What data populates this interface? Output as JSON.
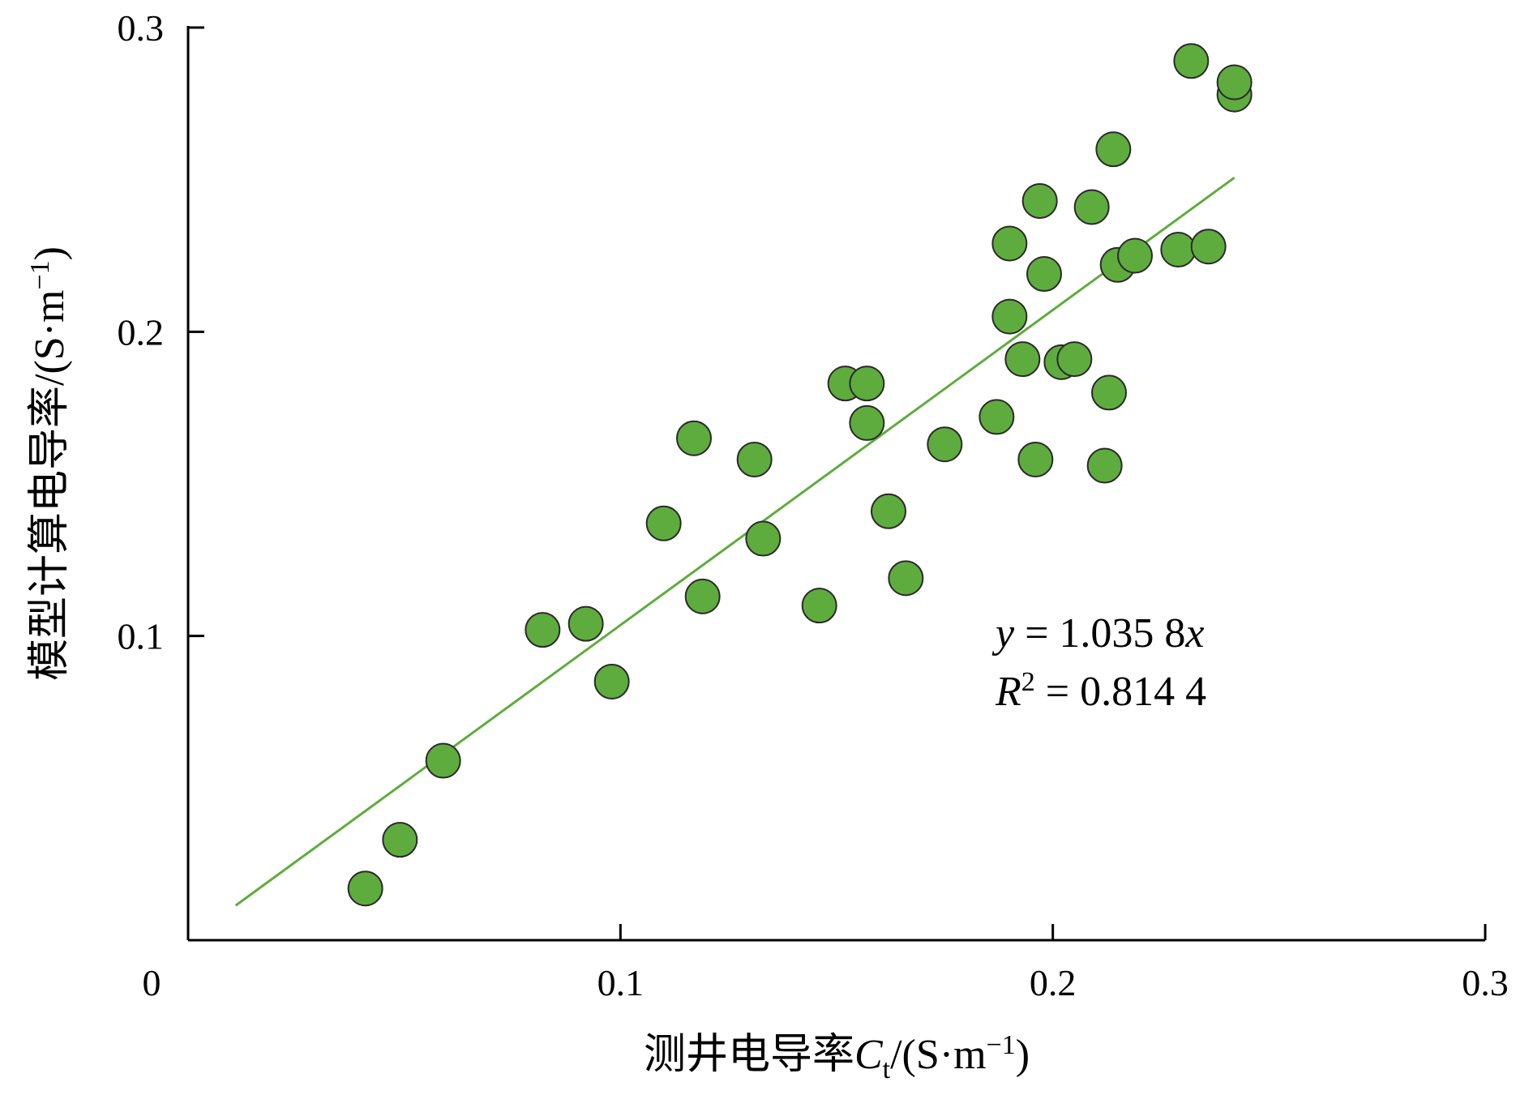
{
  "chart_data": {
    "type": "scatter",
    "title": "",
    "xlabel": "测井电导率C_t/(S·m^-1)",
    "ylabel": "模型计算电导率/(S·m^-1)",
    "xlabel_parts": {
      "prefix": "测井电导率",
      "var": "C",
      "sub": "t",
      "unit_open": "/(S·m",
      "unit_sup": "−1",
      "unit_close": ")"
    },
    "ylabel_parts": {
      "prefix": "模型计算电导率/(S·m",
      "unit_sup": "−1",
      "unit_close": ")"
    },
    "xlim": [
      0,
      0.3
    ],
    "ylim": [
      0,
      0.3
    ],
    "x_ticks": [
      0,
      0.1,
      0.2,
      0.3
    ],
    "x_tick_labels": [
      "0",
      "0.1",
      "0.2",
      "0.3"
    ],
    "y_ticks": [
      0.1,
      0.2,
      0.3
    ],
    "y_tick_labels": [
      "0.1",
      "0.2",
      "0.3"
    ],
    "grid": false,
    "marker_color": "#5fac3e",
    "marker_edge": "#2a2a2a",
    "fit_color": "#5fac3e",
    "points": [
      {
        "x": 0.041,
        "y": 0.017
      },
      {
        "x": 0.049,
        "y": 0.033
      },
      {
        "x": 0.059,
        "y": 0.059
      },
      {
        "x": 0.082,
        "y": 0.102
      },
      {
        "x": 0.092,
        "y": 0.104
      },
      {
        "x": 0.098,
        "y": 0.085
      },
      {
        "x": 0.11,
        "y": 0.137
      },
      {
        "x": 0.117,
        "y": 0.165
      },
      {
        "x": 0.119,
        "y": 0.113
      },
      {
        "x": 0.131,
        "y": 0.158
      },
      {
        "x": 0.133,
        "y": 0.132
      },
      {
        "x": 0.146,
        "y": 0.11
      },
      {
        "x": 0.152,
        "y": 0.183
      },
      {
        "x": 0.157,
        "y": 0.183
      },
      {
        "x": 0.157,
        "y": 0.17
      },
      {
        "x": 0.162,
        "y": 0.141
      },
      {
        "x": 0.166,
        "y": 0.119
      },
      {
        "x": 0.175,
        "y": 0.163
      },
      {
        "x": 0.187,
        "y": 0.172
      },
      {
        "x": 0.19,
        "y": 0.205
      },
      {
        "x": 0.19,
        "y": 0.229
      },
      {
        "x": 0.193,
        "y": 0.191
      },
      {
        "x": 0.196,
        "y": 0.158
      },
      {
        "x": 0.197,
        "y": 0.243
      },
      {
        "x": 0.198,
        "y": 0.219
      },
      {
        "x": 0.202,
        "y": 0.19
      },
      {
        "x": 0.205,
        "y": 0.191
      },
      {
        "x": 0.209,
        "y": 0.241
      },
      {
        "x": 0.212,
        "y": 0.156
      },
      {
        "x": 0.213,
        "y": 0.18
      },
      {
        "x": 0.214,
        "y": 0.26
      },
      {
        "x": 0.215,
        "y": 0.222
      },
      {
        "x": 0.219,
        "y": 0.225
      },
      {
        "x": 0.229,
        "y": 0.227
      },
      {
        "x": 0.232,
        "y": 0.289
      },
      {
        "x": 0.236,
        "y": 0.228
      },
      {
        "x": 0.242,
        "y": 0.278
      },
      {
        "x": 0.242,
        "y": 0.282
      }
    ],
    "fit": {
      "slope": 1.0358,
      "intercept": 0,
      "x_range": [
        0.011,
        0.242
      ]
    },
    "annotations": {
      "equation": {
        "var_y": "y",
        "eq": " = 1.035 8",
        "var_x": "x"
      },
      "r2": {
        "var_r": "R",
        "sup": "2",
        "eq": " = 0.814 4"
      }
    }
  }
}
